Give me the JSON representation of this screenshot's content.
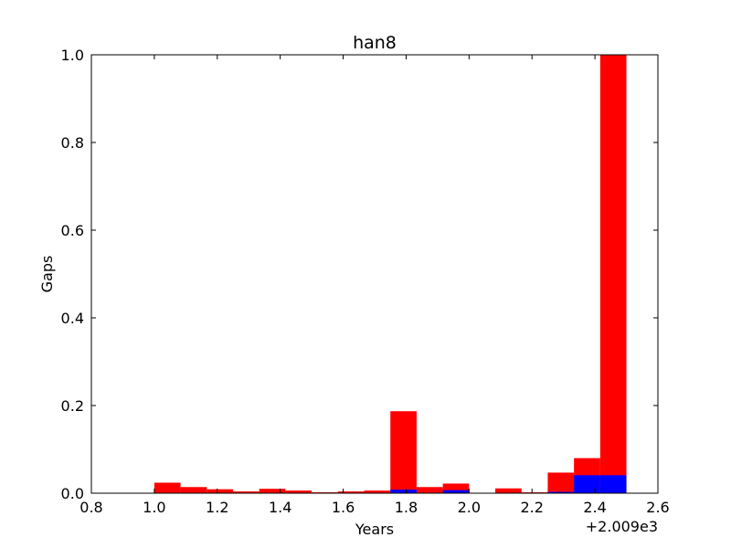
{
  "chart_data": {
    "type": "bar",
    "title": "han8",
    "xlabel": "Years",
    "ylabel": "Gaps",
    "x_offset_label": "+2.009e3",
    "xlim": [
      0.8,
      2.6
    ],
    "ylim": [
      0.0,
      1.0
    ],
    "xticks": [
      "0.8",
      "1.0",
      "1.2",
      "1.4",
      "1.6",
      "1.8",
      "2.0",
      "2.2",
      "2.4",
      "2.6"
    ],
    "yticks": [
      "0.0",
      "0.2",
      "0.4",
      "0.6",
      "0.8",
      "1.0"
    ],
    "bin_edges": [
      1.0,
      1.0833,
      1.1667,
      1.25,
      1.3333,
      1.4167,
      1.5,
      1.5833,
      1.6667,
      1.75,
      1.8333,
      1.9167,
      2.0,
      2.0833,
      2.1667,
      2.25,
      2.3333,
      2.4167,
      2.5
    ],
    "grid": false,
    "series": [
      {
        "color": "#ff0000",
        "values": [
          0.024,
          0.014,
          0.009,
          0.004,
          0.01,
          0.006,
          0.002,
          0.004,
          0.006,
          0.187,
          0.014,
          0.022,
          0.0,
          0.011,
          0.002,
          0.047,
          0.08,
          1.0
        ]
      },
      {
        "color": "#0000ff",
        "values": [
          0.0,
          0.0,
          0.0,
          0.0,
          0.0,
          0.0,
          0.0,
          0.0,
          0.0,
          0.008,
          0.0,
          0.007,
          0.0,
          0.0,
          0.0,
          0.003,
          0.041,
          0.041
        ]
      }
    ]
  }
}
